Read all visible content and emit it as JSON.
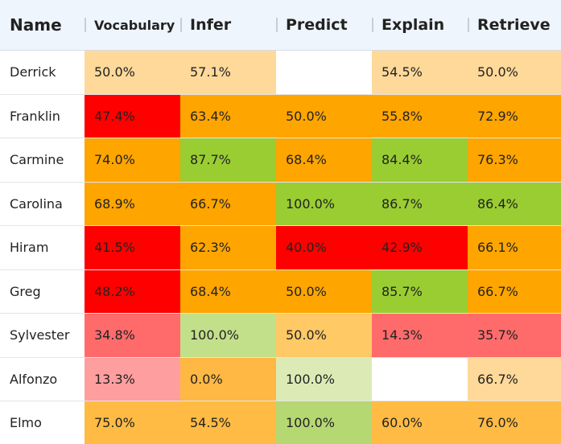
{
  "table": {
    "header": [
      "Name",
      "Vocabulary",
      "Infer",
      "Predict",
      "Explain",
      "Retrieve"
    ],
    "rows": [
      [
        "Derrick",
        "50.0%",
        "57.1%",
        null,
        "54.5%",
        "50.0%"
      ],
      [
        "Franklin",
        "47.4%",
        "63.4%",
        "50.0%",
        "55.8%",
        "72.9%"
      ],
      [
        "Carmine",
        "74.0%",
        "87.7%",
        "68.4%",
        "84.4%",
        "76.3%"
      ],
      [
        "Carolina",
        "68.9%",
        "66.7%",
        "100.0%",
        "86.7%",
        "86.4%"
      ],
      [
        "Hiram",
        "41.5%",
        "62.3%",
        "40.0%",
        "42.9%",
        "66.1%"
      ],
      [
        "Greg",
        "48.2%",
        "68.4%",
        "50.0%",
        "85.7%",
        "66.7%"
      ],
      [
        "Sylvester",
        "34.8%",
        "100.0%",
        "50.0%",
        "14.3%",
        "35.7%"
      ],
      [
        "Alfonzo",
        "13.3%",
        "0.0%",
        "100.0%",
        null,
        "66.7%"
      ],
      [
        "Elmo",
        "75.0%",
        "54.5%",
        "100.0%",
        "60.0%",
        "76.0%"
      ]
    ],
    "cell_colors": [
      [
        "#ffffff",
        "#fed999",
        "#fed999",
        "#ffffff",
        "#fed999",
        "#fed999"
      ],
      [
        "#ffffff",
        "#ff0000",
        "#ffa500",
        "#ffa500",
        "#ffa500",
        "#ffa500"
      ],
      [
        "#ffffff",
        "#ffa500",
        "#9acd32",
        "#ffa500",
        "#9acd32",
        "#ffa500"
      ],
      [
        "#ffffff",
        "#ffa500",
        "#ffa500",
        "#9acd32",
        "#9acd32",
        "#9acd32"
      ],
      [
        "#ffffff",
        "#ff0000",
        "#ffa500",
        "#ff0000",
        "#ff0000",
        "#ffa500"
      ],
      [
        "#ffffff",
        "#ff0000",
        "#ffa500",
        "#ffa500",
        "#9acd32",
        "#ffa500"
      ],
      [
        "#ffffff",
        "#ff6b6b",
        "#c2e08a",
        "#ffc966",
        "#ff6b6b",
        "#ff6b6b"
      ],
      [
        "#ffffff",
        "#ff9e9e",
        "#ffb844",
        "#dcebb5",
        "#ffffff",
        "#fed999"
      ],
      [
        "#ffffff",
        "#ffbb44",
        "#ffbb44",
        "#b5d873",
        "#ffbb44",
        "#ffbb44"
      ]
    ]
  }
}
